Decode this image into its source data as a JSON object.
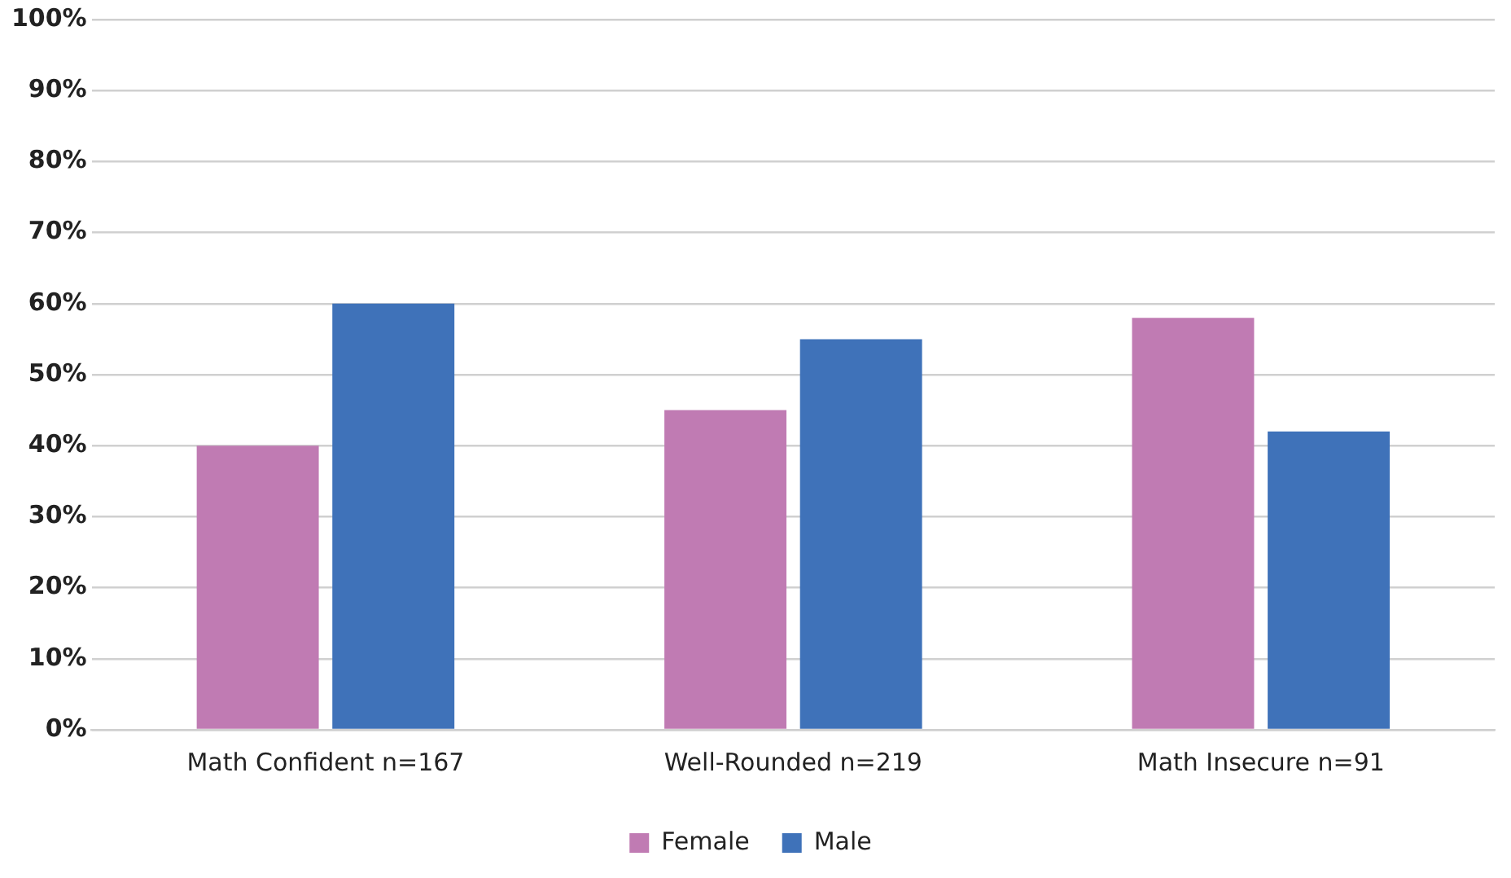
{
  "chart_data": {
    "type": "bar",
    "categories": [
      "Math Confident n=167",
      "Well-Rounded n=219",
      "Math Insecure n=91"
    ],
    "series": [
      {
        "name": "Female",
        "color": "#c07bb3",
        "values": [
          40,
          45,
          58
        ]
      },
      {
        "name": "Male",
        "color": "#3f72b9",
        "values": [
          60,
          55,
          42
        ]
      }
    ],
    "ylim": [
      0,
      100
    ],
    "yticks": [
      {
        "value": 0,
        "label": "0%"
      },
      {
        "value": 10,
        "label": "10%"
      },
      {
        "value": 20,
        "label": "20%"
      },
      {
        "value": 30,
        "label": "30%"
      },
      {
        "value": 40,
        "label": "40%"
      },
      {
        "value": 50,
        "label": "50%"
      },
      {
        "value": 60,
        "label": "60%"
      },
      {
        "value": 70,
        "label": "70%"
      },
      {
        "value": 80,
        "label": "80%"
      },
      {
        "value": 90,
        "label": "90%"
      },
      {
        "value": 100,
        "label": "100%"
      }
    ],
    "grid": "y",
    "legend": "bottom"
  }
}
